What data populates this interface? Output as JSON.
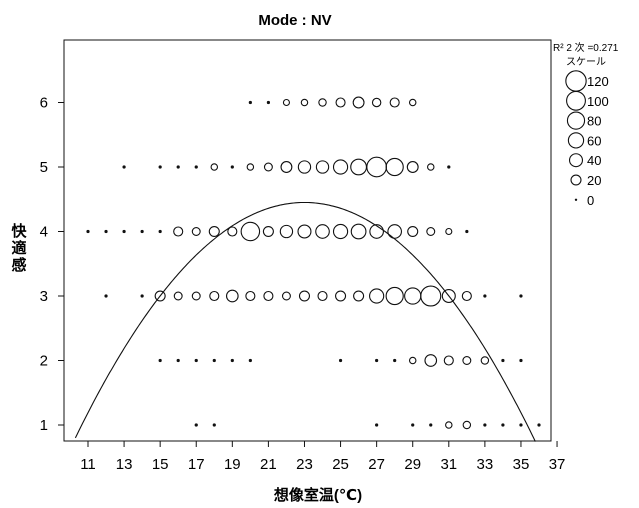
{
  "chart_data": {
    "type": "scatter",
    "title": "Mode : NV",
    "xlabel": "想像室温(℃)",
    "ylabel": "快適感",
    "xlim": [
      10,
      37
    ],
    "ylim": [
      0.8,
      6.5
    ],
    "xticks": [
      "11",
      "13",
      "15",
      "17",
      "19",
      "21",
      "23",
      "25",
      "27",
      "29",
      "31",
      "33",
      "35",
      "37"
    ],
    "yticks": [
      "1",
      "2",
      "3",
      "4",
      "5",
      "6"
    ],
    "grid": false,
    "legend": {
      "placement": "right",
      "header": [
        "R² 2 次 =0.271",
        "スケール"
      ],
      "entries": [
        {
          "label": "120",
          "value": 120
        },
        {
          "label": "100",
          "value": 100
        },
        {
          "label": "80",
          "value": 80
        },
        {
          "label": "60",
          "value": 60
        },
        {
          "label": "40",
          "value": 40
        },
        {
          "label": "20",
          "value": 20
        },
        {
          "label": "0",
          "value": 0
        }
      ]
    },
    "fit": {
      "type": "quadratic",
      "r2": 0.271,
      "vertex": [
        23,
        4.45
      ],
      "x_range": [
        10.3,
        35.8
      ],
      "curve_end_y": 0.8
    },
    "points": [
      {
        "x": 20,
        "y": 6,
        "n": 2
      },
      {
        "x": 21,
        "y": 6,
        "n": 3
      },
      {
        "x": 22,
        "y": 6,
        "n": 4
      },
      {
        "x": 23,
        "y": 6,
        "n": 5
      },
      {
        "x": 24,
        "y": 6,
        "n": 8
      },
      {
        "x": 25,
        "y": 6,
        "n": 15
      },
      {
        "x": 26,
        "y": 6,
        "n": 25
      },
      {
        "x": 27,
        "y": 6,
        "n": 12
      },
      {
        "x": 28,
        "y": 6,
        "n": 15
      },
      {
        "x": 29,
        "y": 6,
        "n": 5
      },
      {
        "x": 13,
        "y": 5,
        "n": 1
      },
      {
        "x": 15,
        "y": 5,
        "n": 2
      },
      {
        "x": 16,
        "y": 5,
        "n": 2
      },
      {
        "x": 17,
        "y": 5,
        "n": 3
      },
      {
        "x": 18,
        "y": 5,
        "n": 5
      },
      {
        "x": 19,
        "y": 5,
        "n": 3
      },
      {
        "x": 20,
        "y": 5,
        "n": 5
      },
      {
        "x": 21,
        "y": 5,
        "n": 10
      },
      {
        "x": 22,
        "y": 5,
        "n": 25
      },
      {
        "x": 23,
        "y": 5,
        "n": 35
      },
      {
        "x": 24,
        "y": 5,
        "n": 35
      },
      {
        "x": 25,
        "y": 5,
        "n": 50
      },
      {
        "x": 26,
        "y": 5,
        "n": 65
      },
      {
        "x": 27,
        "y": 5,
        "n": 110
      },
      {
        "x": 28,
        "y": 5,
        "n": 80
      },
      {
        "x": 29,
        "y": 5,
        "n": 25
      },
      {
        "x": 30,
        "y": 5,
        "n": 5
      },
      {
        "x": 31,
        "y": 5,
        "n": 2
      },
      {
        "x": 11,
        "y": 4,
        "n": 1
      },
      {
        "x": 12,
        "y": 4,
        "n": 1
      },
      {
        "x": 13,
        "y": 4,
        "n": 1
      },
      {
        "x": 14,
        "y": 4,
        "n": 2
      },
      {
        "x": 15,
        "y": 4,
        "n": 3
      },
      {
        "x": 16,
        "y": 4,
        "n": 15
      },
      {
        "x": 17,
        "y": 4,
        "n": 10
      },
      {
        "x": 18,
        "y": 4,
        "n": 20
      },
      {
        "x": 19,
        "y": 4,
        "n": 15
      },
      {
        "x": 20,
        "y": 4,
        "n": 95
      },
      {
        "x": 21,
        "y": 4,
        "n": 20
      },
      {
        "x": 22,
        "y": 4,
        "n": 35
      },
      {
        "x": 23,
        "y": 4,
        "n": 40
      },
      {
        "x": 24,
        "y": 4,
        "n": 45
      },
      {
        "x": 25,
        "y": 4,
        "n": 50
      },
      {
        "x": 26,
        "y": 4,
        "n": 55
      },
      {
        "x": 27,
        "y": 4,
        "n": 45
      },
      {
        "x": 28,
        "y": 4,
        "n": 45
      },
      {
        "x": 29,
        "y": 4,
        "n": 20
      },
      {
        "x": 30,
        "y": 4,
        "n": 10
      },
      {
        "x": 31,
        "y": 4,
        "n": 4
      },
      {
        "x": 32,
        "y": 4,
        "n": 3
      },
      {
        "x": 12,
        "y": 3,
        "n": 1
      },
      {
        "x": 14,
        "y": 3,
        "n": 2
      },
      {
        "x": 15,
        "y": 3,
        "n": 20
      },
      {
        "x": 16,
        "y": 3,
        "n": 10
      },
      {
        "x": 17,
        "y": 3,
        "n": 10
      },
      {
        "x": 18,
        "y": 3,
        "n": 15
      },
      {
        "x": 19,
        "y": 3,
        "n": 30
      },
      {
        "x": 20,
        "y": 3,
        "n": 15
      },
      {
        "x": 21,
        "y": 3,
        "n": 15
      },
      {
        "x": 22,
        "y": 3,
        "n": 10
      },
      {
        "x": 23,
        "y": 3,
        "n": 20
      },
      {
        "x": 24,
        "y": 3,
        "n": 15
      },
      {
        "x": 25,
        "y": 3,
        "n": 20
      },
      {
        "x": 26,
        "y": 3,
        "n": 20
      },
      {
        "x": 27,
        "y": 3,
        "n": 50
      },
      {
        "x": 28,
        "y": 3,
        "n": 80
      },
      {
        "x": 29,
        "y": 3,
        "n": 70
      },
      {
        "x": 30,
        "y": 3,
        "n": 115
      },
      {
        "x": 31,
        "y": 3,
        "n": 40
      },
      {
        "x": 32,
        "y": 3,
        "n": 15
      },
      {
        "x": 33,
        "y": 3,
        "n": 2
      },
      {
        "x": 35,
        "y": 3,
        "n": 1
      },
      {
        "x": 15,
        "y": 2,
        "n": 2
      },
      {
        "x": 16,
        "y": 2,
        "n": 2
      },
      {
        "x": 17,
        "y": 2,
        "n": 3
      },
      {
        "x": 18,
        "y": 2,
        "n": 2
      },
      {
        "x": 19,
        "y": 2,
        "n": 1
      },
      {
        "x": 20,
        "y": 2,
        "n": 2
      },
      {
        "x": 25,
        "y": 2,
        "n": 1
      },
      {
        "x": 27,
        "y": 2,
        "n": 2
      },
      {
        "x": 28,
        "y": 2,
        "n": 2
      },
      {
        "x": 29,
        "y": 2,
        "n": 5
      },
      {
        "x": 30,
        "y": 2,
        "n": 30
      },
      {
        "x": 31,
        "y": 2,
        "n": 15
      },
      {
        "x": 32,
        "y": 2,
        "n": 10
      },
      {
        "x": 33,
        "y": 2,
        "n": 8
      },
      {
        "x": 34,
        "y": 2,
        "n": 3
      },
      {
        "x": 35,
        "y": 2,
        "n": 2
      },
      {
        "x": 17,
        "y": 1,
        "n": 2
      },
      {
        "x": 18,
        "y": 1,
        "n": 1
      },
      {
        "x": 27,
        "y": 1,
        "n": 2
      },
      {
        "x": 29,
        "y": 1,
        "n": 2
      },
      {
        "x": 30,
        "y": 1,
        "n": 3
      },
      {
        "x": 31,
        "y": 1,
        "n": 5
      },
      {
        "x": 32,
        "y": 1,
        "n": 8
      },
      {
        "x": 33,
        "y": 1,
        "n": 3
      },
      {
        "x": 34,
        "y": 1,
        "n": 2
      },
      {
        "x": 35,
        "y": 1,
        "n": 1
      },
      {
        "x": 36,
        "y": 1,
        "n": 1
      }
    ]
  }
}
